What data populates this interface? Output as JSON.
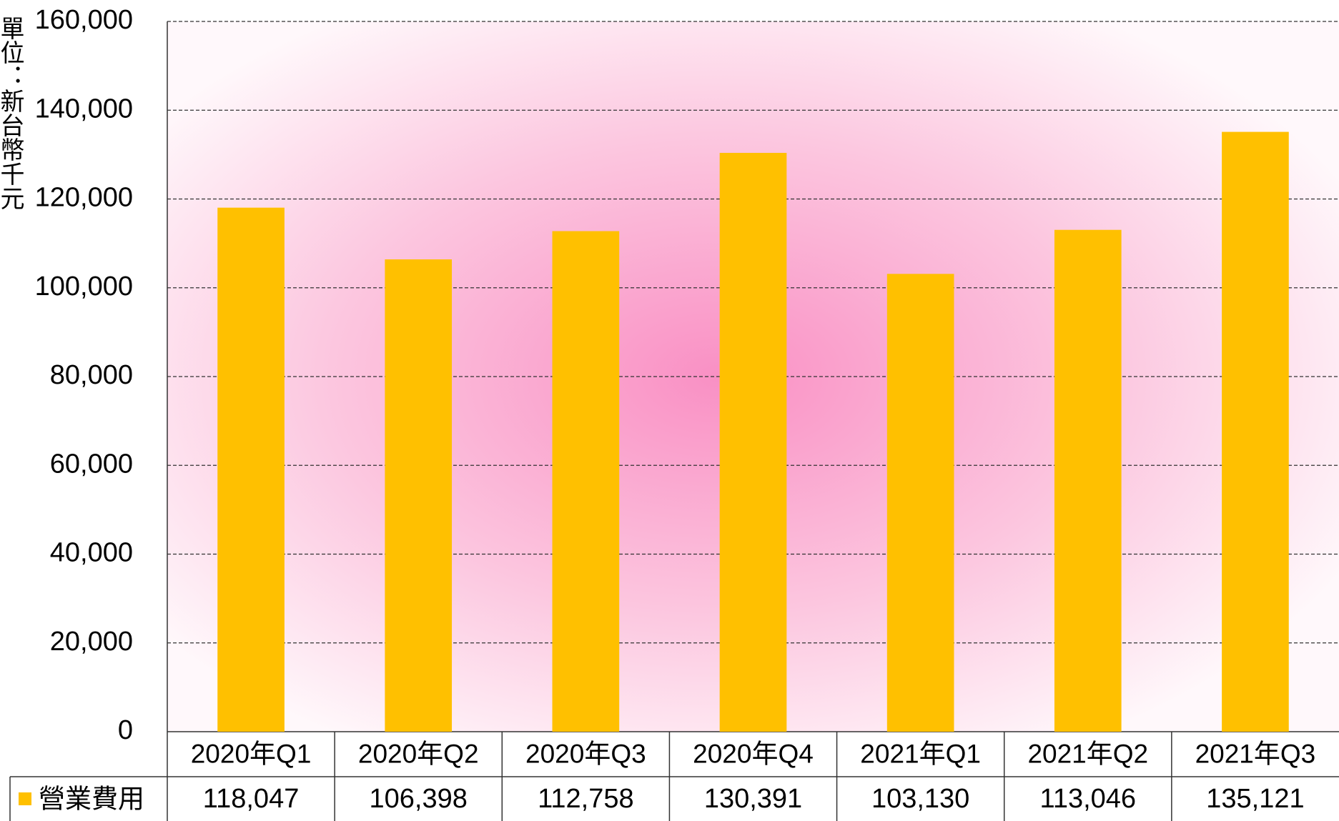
{
  "chart_data": {
    "type": "bar",
    "y_axis_label": "單位：新台幣千元",
    "categories": [
      "2020年Q1",
      "2020年Q2",
      "2020年Q3",
      "2020年Q4",
      "2021年Q1",
      "2021年Q2",
      "2021年Q3"
    ],
    "series": [
      {
        "name": "營業費用",
        "color": "#FFC000",
        "values": [
          118047,
          106398,
          112758,
          130391,
          103130,
          113046,
          135121
        ],
        "value_labels": [
          "118,047",
          "106,398",
          "112,758",
          "130,391",
          "103,130",
          "113,046",
          "135,121"
        ]
      }
    ],
    "ylim": [
      0,
      160000
    ],
    "yticks": [
      0,
      {
        "value": 20000,
        "label": "20,000"
      },
      {
        "value": 40000,
        "label": "40,000"
      },
      {
        "value": 60000,
        "label": "60,000"
      },
      {
        "value": 80000,
        "label": "80,000"
      },
      {
        "value": 100000,
        "label": "100,000"
      },
      {
        "value": 120000,
        "label": "120,000"
      },
      {
        "value": 140000,
        "label": "140,000"
      },
      {
        "value": 160000,
        "label": "160,000"
      }
    ],
    "grid": true
  }
}
